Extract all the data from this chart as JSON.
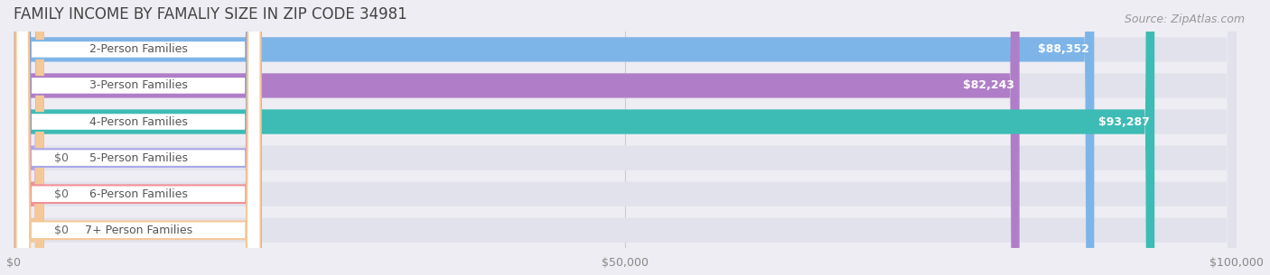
{
  "title": "FAMILY INCOME BY FAMALIY SIZE IN ZIP CODE 34981",
  "source": "Source: ZipAtlas.com",
  "categories": [
    "2-Person Families",
    "3-Person Families",
    "4-Person Families",
    "5-Person Families",
    "6-Person Families",
    "7+ Person Families"
  ],
  "values": [
    88352,
    82243,
    93287,
    0,
    0,
    0
  ],
  "bar_colors": [
    "#7EB5E8",
    "#B07EC8",
    "#3DBCB5",
    "#A8A8E8",
    "#F09098",
    "#F5C898"
  ],
  "value_labels": [
    "$88,352",
    "$82,243",
    "$93,287",
    "$0",
    "$0",
    "$0"
  ],
  "xlim_max": 100000,
  "xticks": [
    0,
    50000,
    100000
  ],
  "xtick_labels": [
    "$0",
    "$50,000",
    "$100,000"
  ],
  "background_color": "#ededf3",
  "bar_bg_color": "#e2e2ec",
  "title_fontsize": 12,
  "source_fontsize": 9,
  "label_fontsize": 9,
  "value_fontsize": 9
}
